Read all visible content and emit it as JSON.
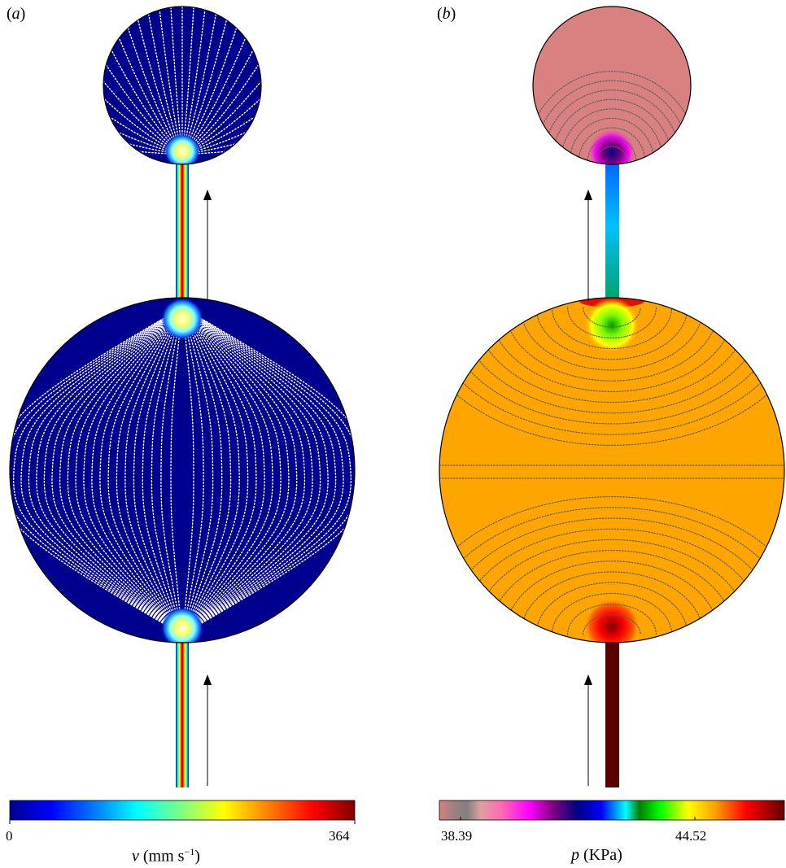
{
  "panels": [
    {
      "id": "a",
      "label_open": "(",
      "label_letter": "a",
      "label_close": ")",
      "field": "velocity magnitude",
      "colorbar": {
        "colors": [
          "#00008f",
          "#0000ff",
          "#0080ff",
          "#00ffff",
          "#80ff80",
          "#ffff00",
          "#ff8000",
          "#ff0000",
          "#800000"
        ],
        "tick_min": "0",
        "tick_max": "364",
        "symbol": "v",
        "unit_text": "(mm s",
        "unit_exp": "−1",
        "unit_close": ")"
      },
      "colors": {
        "background": "#00008f",
        "streamline": "#ffffff",
        "hotspot": "#ffff60"
      }
    },
    {
      "id": "b",
      "label_open": "(",
      "label_letter": "b",
      "label_close": ")",
      "field": "pressure",
      "colorbar": {
        "colors": [
          "#d98080",
          "#a08080",
          "#e0a0a0",
          "#ff6ab4",
          "#ff00ff",
          "#800080",
          "#000080",
          "#0000ff",
          "#00ffff",
          "#008000",
          "#00ff00",
          "#ffff00",
          "#ffa000",
          "#ff0000",
          "#800000"
        ],
        "tick_low": "38.39",
        "tick_high": "44.52",
        "symbol": "p",
        "unit_text": "(KPa)"
      },
      "colors": {
        "top_chamber": "#d98080",
        "bottom_chamber": "#ffa500",
        "isobar": "#606060"
      }
    }
  ],
  "arrows": {
    "color": "#000000"
  }
}
